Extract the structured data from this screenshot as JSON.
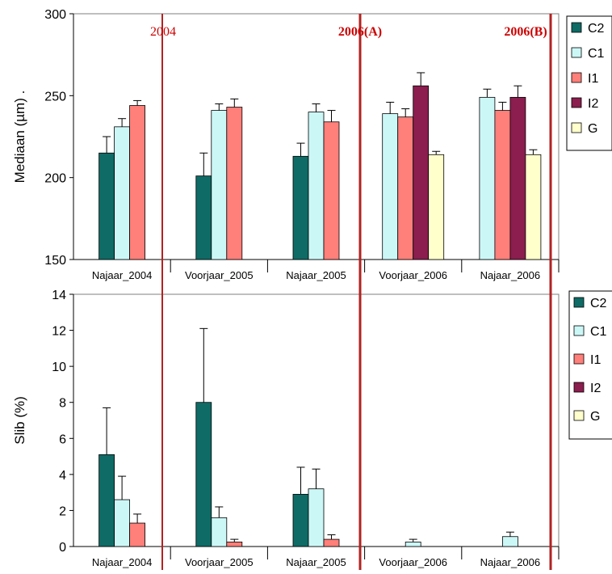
{
  "colors": {
    "C2": "#0f6b66",
    "C1": "#ccf7f7",
    "I1": "#ff7f7a",
    "I2": "#8b1e4e",
    "G": "#ffffcc",
    "divider": "#b22222",
    "marker_text": "#cc0000"
  },
  "series_order": [
    "C2",
    "C1",
    "I1",
    "I2",
    "G"
  ],
  "markers": [
    {
      "label": "2004",
      "bold": false
    },
    {
      "label": "2006(A)",
      "bold": true
    },
    {
      "label": "2006(B)",
      "bold": true
    }
  ],
  "chart_data": [
    {
      "type": "bar",
      "ylabel": "Mediaan (µm) .",
      "ylim": [
        150,
        300
      ],
      "yticks": [
        150,
        200,
        250,
        300
      ],
      "grid": false,
      "legend": "right",
      "categories": [
        "Najaar_2004",
        "Voorjaar_2005",
        "Najaar_2005",
        "Voorjaar_2006",
        "Najaar_2006"
      ],
      "series": [
        {
          "name": "C2",
          "values": [
            215,
            201,
            213,
            null,
            null
          ],
          "errors": [
            10,
            14,
            8,
            null,
            null
          ]
        },
        {
          "name": "C1",
          "values": [
            231,
            241,
            240,
            239,
            249
          ],
          "errors": [
            5,
            4,
            5,
            7,
            5
          ]
        },
        {
          "name": "I1",
          "values": [
            244,
            243,
            234,
            237,
            241
          ],
          "errors": [
            3,
            5,
            7,
            5,
            5
          ]
        },
        {
          "name": "I2",
          "values": [
            null,
            null,
            null,
            256,
            249
          ],
          "errors": [
            null,
            null,
            null,
            8,
            7
          ]
        },
        {
          "name": "G",
          "values": [
            null,
            null,
            null,
            214,
            214
          ],
          "errors": [
            null,
            null,
            null,
            2,
            3
          ]
        }
      ]
    },
    {
      "type": "bar",
      "ylabel": "Slib (%)",
      "ylim": [
        0,
        14
      ],
      "yticks": [
        0,
        2,
        4,
        6,
        8,
        10,
        12,
        14
      ],
      "grid": false,
      "legend": "right",
      "categories": [
        "Najaar_2004",
        "Voorjaar_2005",
        "Najaar_2005",
        "Voorjaar_2006",
        "Najaar_2006"
      ],
      "series": [
        {
          "name": "C2",
          "values": [
            5.1,
            8.0,
            2.9,
            null,
            null
          ],
          "errors": [
            2.6,
            4.1,
            1.5,
            null,
            null
          ]
        },
        {
          "name": "C1",
          "values": [
            2.6,
            1.6,
            3.2,
            0.25,
            0.55
          ],
          "errors": [
            1.3,
            0.6,
            1.1,
            0.15,
            0.25
          ]
        },
        {
          "name": "I1",
          "values": [
            1.3,
            0.25,
            0.4,
            null,
            null
          ],
          "errors": [
            0.5,
            0.15,
            0.25,
            null,
            null
          ]
        },
        {
          "name": "I2",
          "values": [
            null,
            null,
            null,
            null,
            null
          ],
          "errors": [
            null,
            null,
            null,
            null,
            null
          ]
        },
        {
          "name": "G",
          "values": [
            null,
            null,
            null,
            null,
            null
          ],
          "errors": [
            null,
            null,
            null,
            null,
            null
          ]
        }
      ]
    }
  ]
}
